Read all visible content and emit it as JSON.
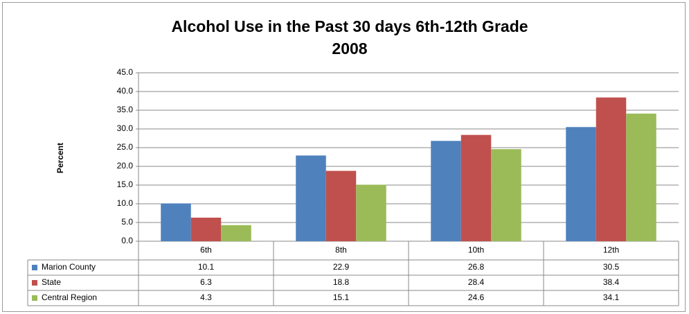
{
  "chart_data": {
    "type": "bar",
    "title": "Alcohol Use in the Past 30 days 6th-12th Grade",
    "subtitle": "2008",
    "y_label": "Percent",
    "categories": [
      "6th",
      "8th",
      "10th",
      "12th"
    ],
    "series": [
      {
        "name": "Marion County",
        "color": "#4f81bd",
        "values": [
          10.1,
          22.9,
          26.8,
          30.5
        ]
      },
      {
        "name": "State",
        "color": "#c0504d",
        "values": [
          6.3,
          18.8,
          28.4,
          38.4
        ]
      },
      {
        "name": "Central Region",
        "color": "#9bbb59",
        "values": [
          4.3,
          15.1,
          24.6,
          34.1
        ]
      }
    ],
    "ylim": [
      0,
      45
    ],
    "yticks": [
      {
        "value": 0,
        "label": "0.0"
      },
      {
        "value": 5,
        "label": "5.0"
      },
      {
        "value": 10,
        "label": "10.0"
      },
      {
        "value": 15,
        "label": "15.0"
      },
      {
        "value": 20,
        "label": "20.0"
      },
      {
        "value": 25,
        "label": "25.0"
      },
      {
        "value": 30,
        "label": "30.0"
      },
      {
        "value": 35,
        "label": "35.0"
      },
      {
        "value": 40,
        "label": "40.0"
      },
      {
        "value": 45,
        "label": "45.0"
      }
    ],
    "grid": true
  }
}
